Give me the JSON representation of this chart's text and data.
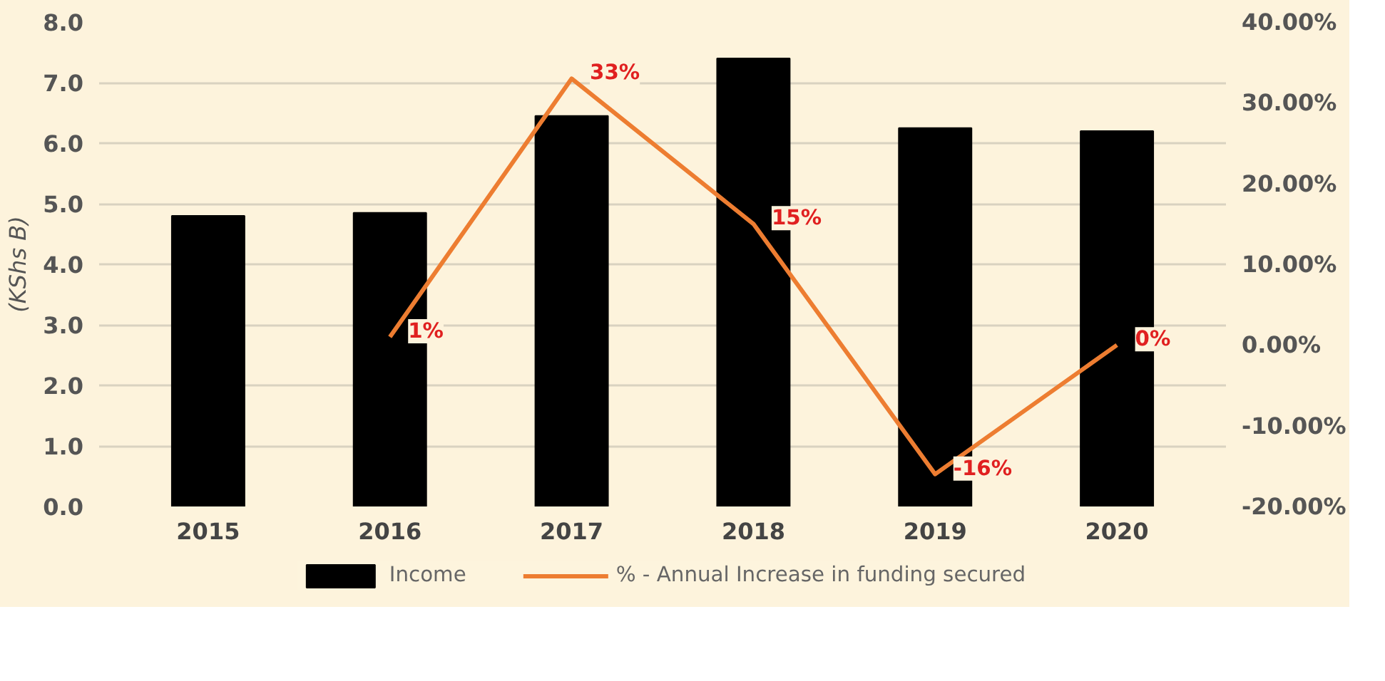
{
  "chart_data": {
    "type": "bar",
    "ylabel": "(KShs B)",
    "categories": [
      "2015",
      "2016",
      "2017",
      "2018",
      "2019",
      "2020"
    ],
    "series": [
      {
        "name": "Income",
        "color": "#000000",
        "values": [
          4.8,
          4.85,
          6.45,
          7.4,
          6.25,
          6.2
        ]
      },
      {
        "name": "% - Annual Increase in funding secured",
        "type": "line",
        "axis": "y2",
        "color": "#ed7d31",
        "values": [
          null,
          1,
          33,
          15,
          -16,
          0
        ],
        "value_labels": [
          null,
          "1%",
          "33%",
          "15%",
          "-16%",
          "0%"
        ]
      }
    ],
    "ylim": [
      0,
      8
    ],
    "yticks": [
      {
        "value": 0,
        "label": "0.0"
      },
      {
        "value": 1,
        "label": "1.0"
      },
      {
        "value": 2,
        "label": "2.0"
      },
      {
        "value": 3,
        "label": "3.0"
      },
      {
        "value": 4,
        "label": "4.0"
      },
      {
        "value": 5,
        "label": "5.0"
      },
      {
        "value": 6,
        "label": "6.0"
      },
      {
        "value": 7,
        "label": "7.0"
      },
      {
        "value": 8,
        "label": "8.0"
      }
    ],
    "y2lim": [
      -20,
      40
    ],
    "y2ticks": [
      {
        "value": -20,
        "label": "-20.00%"
      },
      {
        "value": -10,
        "label": "-10.00%"
      },
      {
        "value": 0,
        "label": "0.00%"
      },
      {
        "value": 10,
        "label": "10.00%"
      },
      {
        "value": 20,
        "label": "20.00%"
      },
      {
        "value": 30,
        "label": "30.00%"
      },
      {
        "value": 40,
        "label": "40.00%"
      }
    ],
    "grid": "y",
    "legend": "bottom",
    "marker": "none",
    "line_style": "solid"
  }
}
